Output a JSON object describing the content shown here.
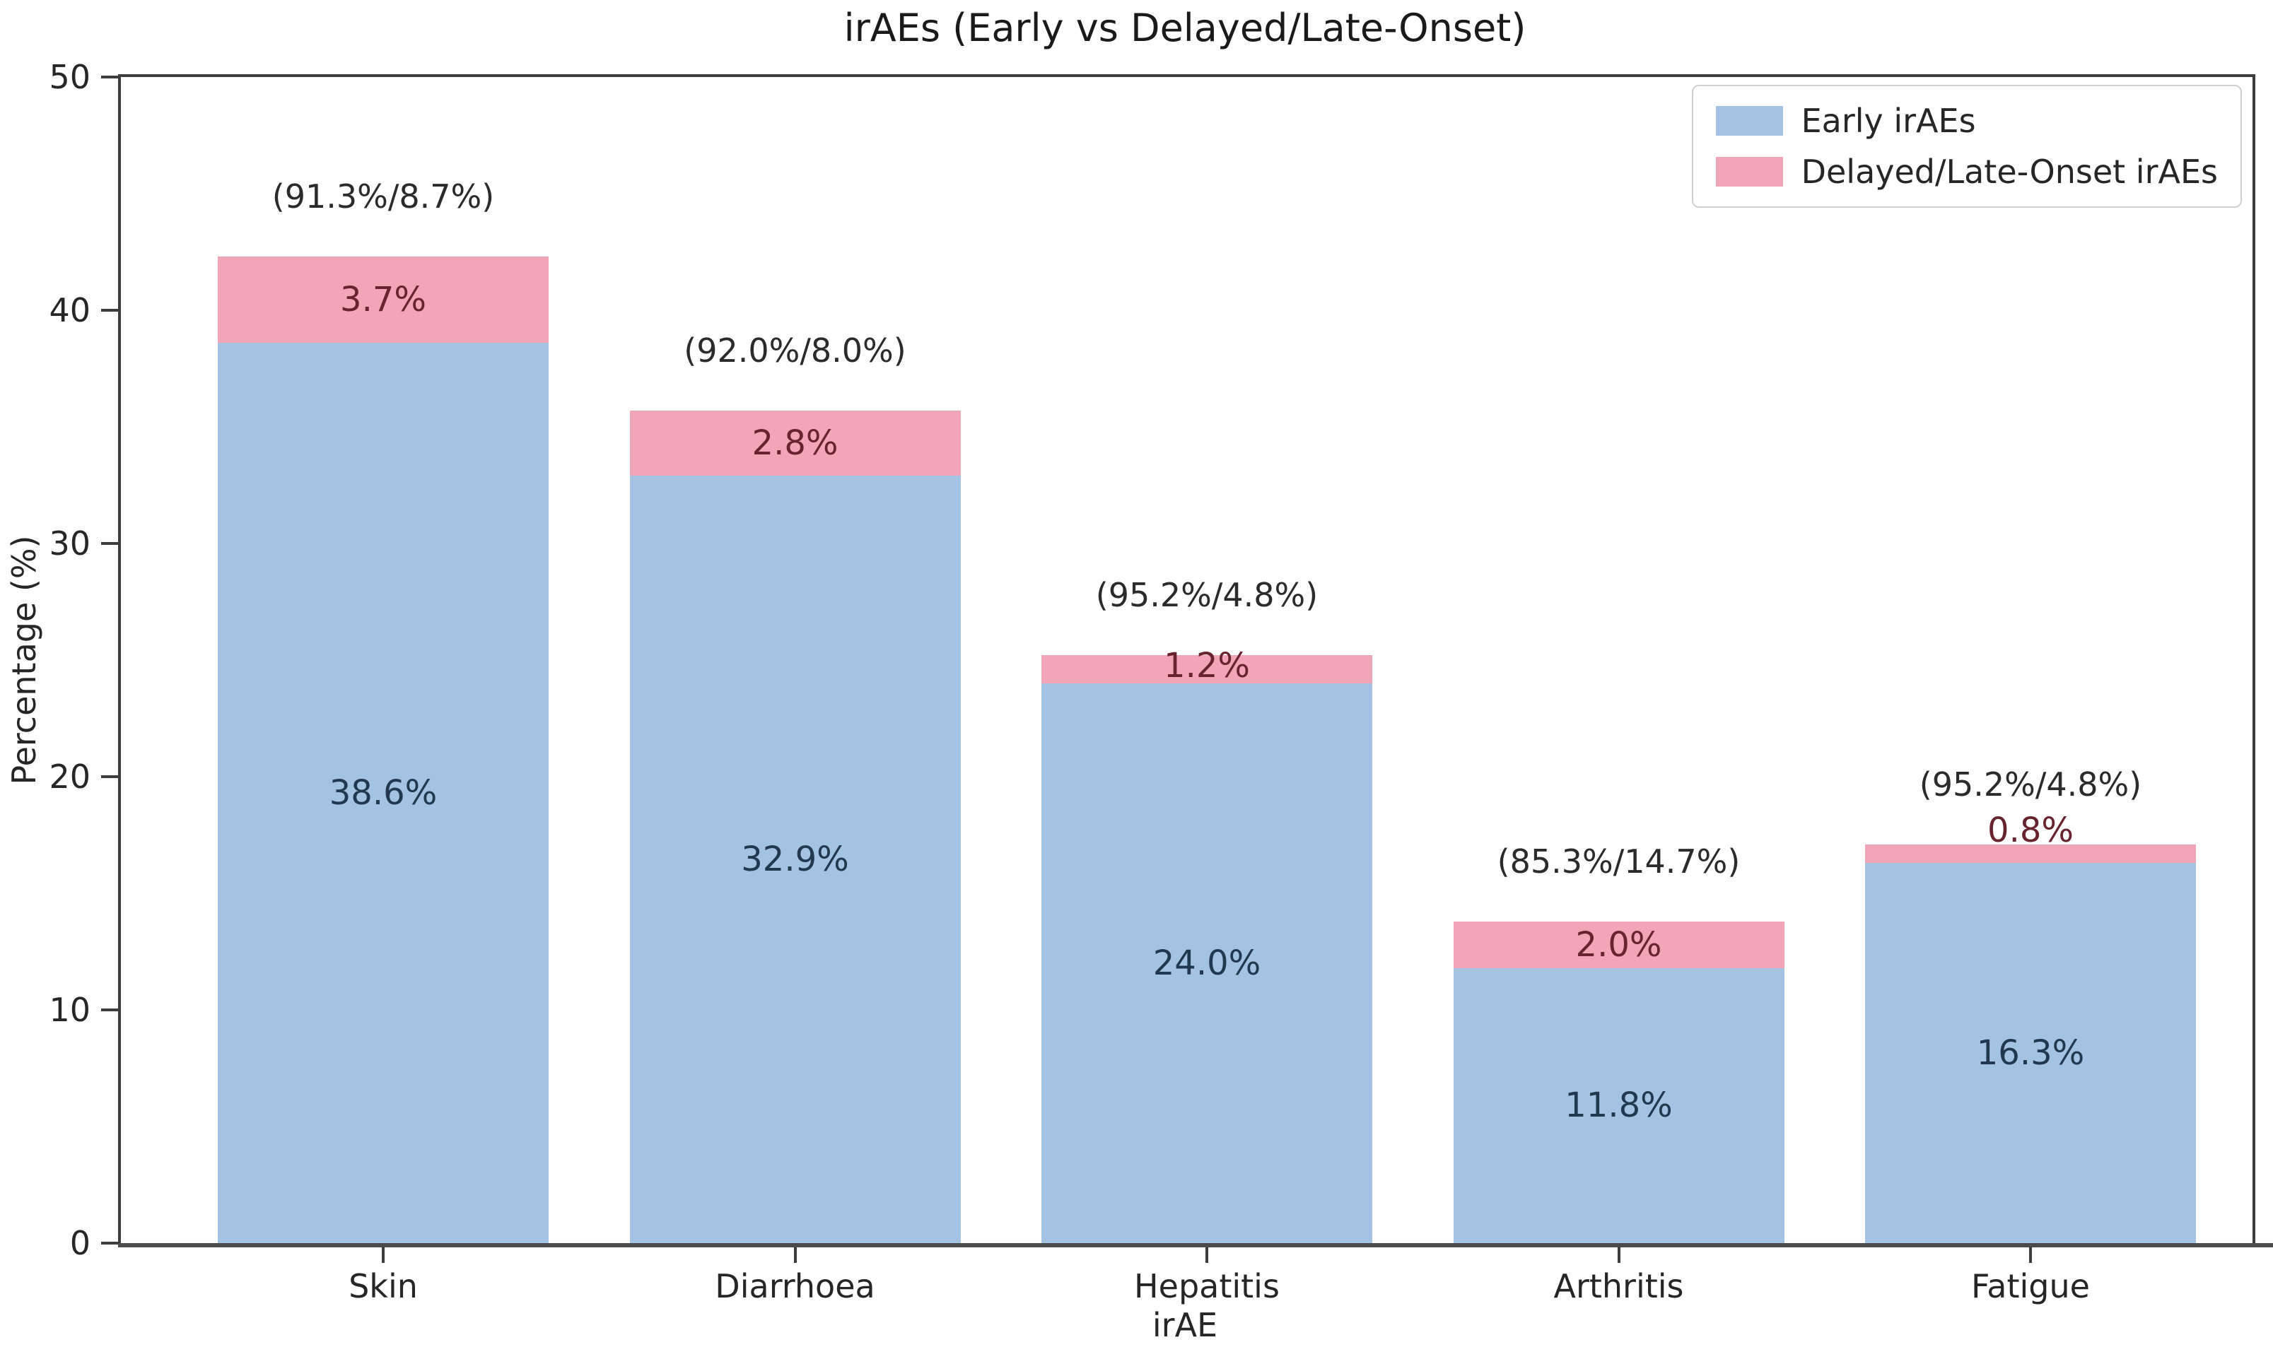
{
  "chart_data": {
    "type": "bar",
    "stacked": true,
    "title": "irAEs (Early vs Delayed/Late-Onset)",
    "xlabel": "irAE",
    "ylabel": "Percentage (%)",
    "ylim": [
      0,
      50
    ],
    "yticks": [
      0,
      10,
      20,
      30,
      40,
      50
    ],
    "categories": [
      "Skin",
      "Diarrhoea",
      "Hepatitis",
      "Arthritis",
      "Fatigue"
    ],
    "series": [
      {
        "name": "Early irAEs",
        "color": "#a4c2e2",
        "label_color": "#22384f",
        "values": [
          38.6,
          32.9,
          24.0,
          11.8,
          16.3
        ],
        "labels": [
          "38.6%",
          "32.9%",
          "24.0%",
          "11.8%",
          "16.3%"
        ]
      },
      {
        "name": "Delayed/Late-Onset irAEs",
        "color": "#f1a5b6",
        "label_color": "#67242f",
        "values": [
          3.7,
          2.8,
          1.2,
          2.0,
          0.8
        ],
        "labels": [
          "3.7%",
          "2.8%",
          "1.2%",
          "2.0%",
          "0.8%"
        ]
      }
    ],
    "totals_annotations": [
      "(91.3%/8.7%)",
      "(92.0%/8.0%)",
      "(95.2%/4.8%)",
      "(85.3%/14.7%)",
      "(95.2%/4.8%)"
    ],
    "legend": {
      "position": "upper right",
      "entries": [
        "Early irAEs",
        "Delayed/Late-Onset irAEs"
      ]
    },
    "grid": false,
    "axis_color": "#3d3d3d",
    "text_color": "#1a1a1a"
  }
}
